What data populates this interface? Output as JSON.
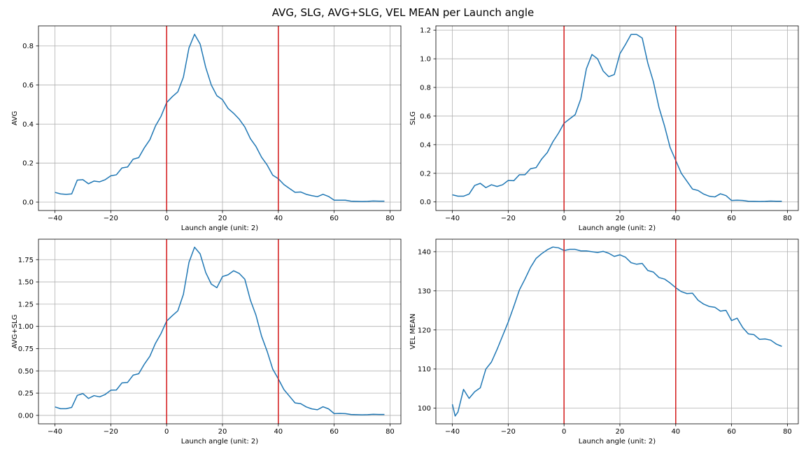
{
  "figure": {
    "title": "AVG, SLG, AVG+SLG, VEL MEAN per Launch angle"
  },
  "colors": {
    "line": "#1f77b4",
    "vline": "#d62728",
    "grid": "#b0b0b0",
    "axis": "#000000"
  },
  "chart_data": [
    {
      "type": "line",
      "ylabel": "AVG",
      "xlabel": "Launch angle (unit: 2)",
      "xlim": [
        -45.9,
        83.9
      ],
      "ylim": [
        -0.043,
        0.903
      ],
      "xticks": [
        -40,
        -20,
        0,
        20,
        40,
        60,
        80
      ],
      "xtick_labels": [
        "−40",
        "−20",
        "0",
        "20",
        "40",
        "60",
        "80"
      ],
      "yticks": [
        0.0,
        0.2,
        0.4,
        0.6,
        0.8
      ],
      "ytick_labels": [
        "0.0",
        "0.2",
        "0.4",
        "0.6",
        "0.8"
      ],
      "vlines": [
        0,
        40
      ],
      "grid": true,
      "x": [
        -40,
        -38,
        -36,
        -34,
        -32,
        -30,
        -28,
        -26,
        -24,
        -22,
        -20,
        -18,
        -16,
        -14,
        -12,
        -10,
        -8,
        -6,
        -4,
        -2,
        0,
        2,
        4,
        6,
        8,
        10,
        12,
        14,
        16,
        18,
        20,
        22,
        24,
        26,
        28,
        30,
        32,
        34,
        36,
        38,
        40,
        42,
        44,
        46,
        48,
        50,
        52,
        54,
        56,
        58,
        60,
        62,
        64,
        66,
        68,
        70,
        72,
        74,
        76,
        78
      ],
      "y": [
        0.05,
        0.042,
        0.04,
        0.042,
        0.113,
        0.115,
        0.094,
        0.108,
        0.104,
        0.115,
        0.135,
        0.14,
        0.175,
        0.18,
        0.22,
        0.228,
        0.278,
        0.32,
        0.39,
        0.44,
        0.51,
        0.54,
        0.565,
        0.64,
        0.79,
        0.86,
        0.81,
        0.69,
        0.6,
        0.545,
        0.525,
        0.48,
        0.455,
        0.425,
        0.385,
        0.325,
        0.285,
        0.23,
        0.19,
        0.138,
        0.12,
        0.09,
        0.07,
        0.05,
        0.052,
        0.04,
        0.033,
        0.028,
        0.04,
        0.029,
        0.01,
        0.01,
        0.01,
        0.005,
        0.004,
        0.003,
        0.004,
        0.006,
        0.005,
        0.005
      ]
    },
    {
      "type": "line",
      "ylabel": "SLG",
      "xlabel": "Launch angle (unit: 2)",
      "xlim": [
        -45.9,
        83.9
      ],
      "ylim": [
        -0.06,
        1.23
      ],
      "xticks": [
        -40,
        -20,
        0,
        20,
        40,
        60,
        80
      ],
      "xtick_labels": [
        "−40",
        "−20",
        "0",
        "20",
        "40",
        "60",
        "80"
      ],
      "yticks": [
        0.0,
        0.2,
        0.4,
        0.6,
        0.8,
        1.0,
        1.2
      ],
      "ytick_labels": [
        "0.0",
        "0.2",
        "0.4",
        "0.6",
        "0.8",
        "1.0",
        "1.2"
      ],
      "vlines": [
        0,
        40
      ],
      "grid": true,
      "x": [
        -40,
        -38,
        -36,
        -34,
        -32,
        -30,
        -28,
        -26,
        -24,
        -22,
        -20,
        -18,
        -16,
        -14,
        -12,
        -10,
        -8,
        -6,
        -4,
        -2,
        0,
        2,
        4,
        6,
        8,
        10,
        12,
        14,
        16,
        18,
        20,
        22,
        24,
        26,
        28,
        30,
        32,
        34,
        36,
        38,
        40,
        42,
        44,
        46,
        48,
        50,
        52,
        54,
        56,
        58,
        60,
        62,
        64,
        66,
        68,
        70,
        72,
        74,
        76,
        78
      ],
      "y": [
        0.05,
        0.04,
        0.04,
        0.055,
        0.115,
        0.13,
        0.1,
        0.12,
        0.108,
        0.12,
        0.15,
        0.148,
        0.19,
        0.19,
        0.232,
        0.24,
        0.3,
        0.345,
        0.42,
        0.48,
        0.55,
        0.58,
        0.61,
        0.72,
        0.93,
        1.03,
        1.0,
        0.915,
        0.875,
        0.89,
        1.035,
        1.1,
        1.17,
        1.17,
        1.145,
        0.97,
        0.84,
        0.66,
        0.53,
        0.38,
        0.29,
        0.2,
        0.145,
        0.09,
        0.08,
        0.055,
        0.04,
        0.035,
        0.057,
        0.044,
        0.01,
        0.012,
        0.01,
        0.005,
        0.004,
        0.003,
        0.004,
        0.006,
        0.005,
        0.005
      ]
    },
    {
      "type": "line",
      "ylabel": "AVG+SLG",
      "xlabel": "Launch angle (unit: 2)",
      "xlim": [
        -45.9,
        83.9
      ],
      "ylim": [
        -0.095,
        1.98
      ],
      "xticks": [
        -40,
        -20,
        0,
        20,
        40,
        60,
        80
      ],
      "xtick_labels": [
        "−40",
        "−20",
        "0",
        "20",
        "40",
        "60",
        "80"
      ],
      "yticks": [
        0.0,
        0.25,
        0.5,
        0.75,
        1.0,
        1.25,
        1.5,
        1.75
      ],
      "ytick_labels": [
        "0.00",
        "0.25",
        "0.50",
        "0.75",
        "1.00",
        "1.25",
        "1.50",
        "1.75"
      ],
      "vlines": [
        0,
        40
      ],
      "grid": true,
      "x": [
        -40,
        -38,
        -36,
        -34,
        -32,
        -30,
        -28,
        -26,
        -24,
        -22,
        -20,
        -18,
        -16,
        -14,
        -12,
        -10,
        -8,
        -6,
        -4,
        -2,
        0,
        2,
        4,
        6,
        8,
        10,
        12,
        14,
        16,
        18,
        20,
        22,
        24,
        26,
        28,
        30,
        32,
        34,
        36,
        38,
        40,
        42,
        44,
        46,
        48,
        50,
        52,
        54,
        56,
        58,
        60,
        62,
        64,
        66,
        68,
        70,
        72,
        74,
        76,
        78
      ],
      "y": [
        0.095,
        0.075,
        0.075,
        0.09,
        0.225,
        0.245,
        0.19,
        0.222,
        0.208,
        0.235,
        0.283,
        0.285,
        0.365,
        0.37,
        0.452,
        0.468,
        0.575,
        0.665,
        0.81,
        0.92,
        1.06,
        1.12,
        1.175,
        1.36,
        1.72,
        1.89,
        1.815,
        1.605,
        1.475,
        1.435,
        1.56,
        1.58,
        1.625,
        1.595,
        1.53,
        1.295,
        1.125,
        0.89,
        0.72,
        0.52,
        0.41,
        0.29,
        0.215,
        0.14,
        0.132,
        0.095,
        0.073,
        0.063,
        0.097,
        0.073,
        0.02,
        0.022,
        0.02,
        0.01,
        0.008,
        0.006,
        0.008,
        0.012,
        0.01,
        0.01
      ]
    },
    {
      "type": "line",
      "ylabel": "VEL MEAN",
      "xlabel": "Launch angle (unit: 2)",
      "xlim": [
        -45.9,
        83.9
      ],
      "ylim": [
        96.0,
        143.2
      ],
      "xticks": [
        -40,
        -20,
        0,
        20,
        40,
        60,
        80
      ],
      "xtick_labels": [
        "−40",
        "−20",
        "0",
        "20",
        "40",
        "60",
        "80"
      ],
      "yticks": [
        100,
        110,
        120,
        130,
        140
      ],
      "ytick_labels": [
        "100",
        "110",
        "120",
        "130",
        "140"
      ],
      "vlines": [
        0,
        40
      ],
      "grid": true,
      "x": [
        -40,
        -39,
        -38,
        -36,
        -34,
        -32,
        -30,
        -28,
        -26,
        -24,
        -22,
        -20,
        -18,
        -16,
        -14,
        -12,
        -10,
        -8,
        -6,
        -4,
        -2,
        0,
        2,
        4,
        6,
        8,
        10,
        12,
        14,
        16,
        18,
        20,
        22,
        24,
        26,
        28,
        30,
        32,
        34,
        36,
        38,
        40,
        42,
        44,
        46,
        48,
        50,
        52,
        54,
        56,
        58,
        60,
        62,
        64,
        66,
        68,
        70,
        72,
        74,
        76,
        78
      ],
      "y": [
        101,
        98,
        99,
        104.8,
        102.5,
        104.2,
        105.2,
        110,
        111.8,
        115,
        118.5,
        122,
        126,
        130.2,
        133,
        136,
        138.3,
        139.5,
        140.5,
        141.2,
        141,
        140.3,
        140.6,
        140.6,
        140.2,
        140.2,
        140,
        139.8,
        140.1,
        139.6,
        138.8,
        139.2,
        138.6,
        137.2,
        136.8,
        137,
        135.2,
        134.8,
        133.4,
        133,
        132,
        130.8,
        129.8,
        129.3,
        129.4,
        127.6,
        126.6,
        126,
        125.8,
        124.8,
        125,
        122.4,
        123,
        120.6,
        119,
        118.8,
        117.6,
        117.7,
        117.4,
        116.4,
        115.8
      ]
    }
  ]
}
